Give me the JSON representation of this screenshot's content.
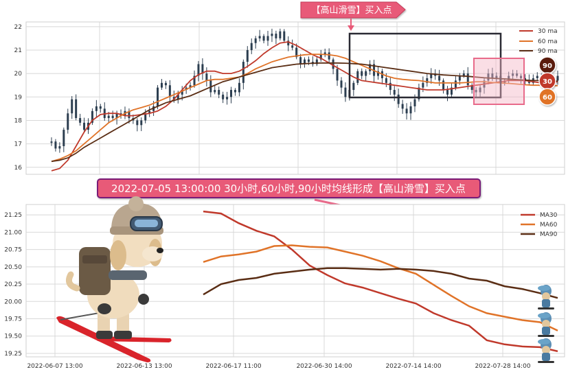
{
  "colors": {
    "ma30": "#c0392b",
    "ma60": "#e07328",
    "ma90": "#5a2d14",
    "candle": "#2c3e50",
    "grid": "#d8d8d8",
    "callout_fill": "#e85a78",
    "signal_box": "#2a2a33",
    "zone_fill": "#f3b5c5",
    "zone_stroke": "#e86a8a",
    "badge_90": "#5a1f10",
    "badge_30": "#c0392b",
    "badge_60": "#e07328"
  },
  "top_callout": {
    "text": "【高山滑雪】买入点"
  },
  "middle_banner": {
    "text": "2022-07-05 13:00:00 30小时,60小时,90小时均线形成【高山滑雪】买入点"
  },
  "badges": {
    "b90": "90",
    "b30": "30",
    "b60": "60"
  },
  "decorations": {
    "left_image": "puppy-skier-icon",
    "right_image": "small-skier-icons"
  },
  "chart_data": [
    {
      "type": "line",
      "panel": "price",
      "ylim": [
        15.7,
        22.2
      ],
      "yticks": [
        16,
        17,
        18,
        19,
        20,
        21,
        22
      ],
      "grid": true,
      "legend": {
        "position": "top-right",
        "entries": [
          "30 ma",
          "60 ma",
          "90 ma"
        ]
      },
      "price_series": {
        "name": "",
        "x": [
          0,
          6,
          12,
          18,
          24,
          30,
          36,
          42,
          48,
          54,
          60,
          66,
          72,
          78,
          84,
          90,
          96,
          102,
          108,
          114,
          120,
          126,
          132,
          138,
          144,
          150,
          156,
          162,
          168,
          174,
          180,
          186,
          192,
          198,
          204,
          210,
          216,
          222,
          228,
          234,
          240,
          246,
          252,
          258,
          264,
          270,
          276,
          282,
          288,
          294,
          300,
          306,
          312,
          318,
          324,
          330,
          336,
          342,
          348,
          354,
          360,
          366,
          372,
          378,
          384,
          390,
          396,
          402,
          408,
          414,
          420,
          426,
          432,
          438,
          444,
          450,
          456,
          462,
          468,
          474,
          480,
          486,
          492,
          498,
          504,
          510,
          516,
          522,
          528,
          534,
          540,
          546,
          552,
          558,
          564,
          570,
          576,
          582,
          588,
          594,
          600,
          606,
          612,
          618,
          624,
          630,
          636,
          642,
          648,
          654,
          660,
          666,
          672,
          678,
          684,
          690,
          696,
          702,
          708,
          714,
          720,
          726,
          732,
          738,
          744
        ],
        "values": [
          17.1,
          16.8,
          16.9,
          17.6,
          18.3,
          18.9,
          18.1,
          17.9,
          17.6,
          17.9,
          18.4,
          18.6,
          18.5,
          18.1,
          18.2,
          18.1,
          18.3,
          18.2,
          18.4,
          18.1,
          18.0,
          17.8,
          18.0,
          18.3,
          18.4,
          18.6,
          19.4,
          19.6,
          19.5,
          19.0,
          18.9,
          19.1,
          19.3,
          19.4,
          19.5,
          19.9,
          20.4,
          20.0,
          19.7,
          19.2,
          19.3,
          19.1,
          18.9,
          19.0,
          19.3,
          19.2,
          19.6,
          20.5,
          21.0,
          21.3,
          21.5,
          21.6,
          21.4,
          21.6,
          21.7,
          21.5,
          21.8,
          21.4,
          21.2,
          21.1,
          20.7,
          20.4,
          20.6,
          20.5,
          20.4,
          20.6,
          20.8,
          20.9,
          20.6,
          20.2,
          19.7,
          19.4,
          19.0,
          19.3,
          19.6,
          20.1,
          19.9,
          20.1,
          20.4,
          19.9,
          20.1,
          19.8,
          19.6,
          19.3,
          19.1,
          18.7,
          18.5,
          18.3,
          18.6,
          18.9,
          19.4,
          19.6,
          19.8,
          20.0,
          19.9,
          19.7,
          19.3,
          19.1,
          19.4,
          19.7,
          19.9,
          20.0,
          19.5,
          19.3,
          19.2,
          19.4,
          19.7,
          20.0,
          19.8,
          19.9,
          19.6,
          19.7,
          19.9,
          20.0,
          19.9,
          19.8,
          19.7,
          19.6,
          19.8,
          19.9,
          19.8,
          19.7,
          19.8,
          19.7,
          19.9
        ]
      },
      "series": [
        {
          "name": "30 ma",
          "x": [
            0,
            12,
            24,
            36,
            48,
            60,
            72,
            84,
            96,
            108,
            120,
            132,
            144,
            156,
            168,
            180,
            192,
            204,
            216,
            228,
            240,
            252,
            264,
            276,
            288,
            300,
            312,
            324,
            336,
            348,
            360,
            372,
            384,
            396,
            408,
            420,
            432,
            444,
            456,
            468,
            480,
            492,
            504,
            516,
            528,
            540,
            552,
            564,
            576,
            588,
            600,
            612,
            624,
            636,
            648,
            660,
            672,
            684,
            696,
            708,
            720,
            732,
            744
          ],
          "values": [
            15.85,
            15.95,
            16.3,
            16.9,
            17.5,
            18.0,
            18.25,
            18.3,
            18.3,
            18.2,
            18.2,
            18.25,
            18.3,
            18.4,
            18.6,
            18.9,
            19.3,
            19.7,
            19.95,
            20.1,
            20.1,
            20.0,
            20.0,
            20.1,
            20.3,
            20.55,
            20.85,
            21.1,
            21.3,
            21.35,
            21.2,
            21.0,
            20.8,
            20.65,
            20.45,
            20.25,
            20.05,
            19.85,
            19.7,
            19.65,
            19.6,
            19.55,
            19.5,
            19.45,
            19.4,
            19.35,
            19.3,
            19.3,
            19.3,
            19.35,
            19.4,
            19.45,
            19.5,
            19.55,
            19.6,
            19.65,
            19.7,
            19.7,
            19.7,
            19.65,
            19.6,
            19.6,
            19.65
          ]
        },
        {
          "name": "60 ma",
          "x": [
            0,
            12,
            24,
            36,
            48,
            60,
            72,
            84,
            96,
            108,
            120,
            132,
            144,
            156,
            168,
            180,
            192,
            204,
            216,
            228,
            240,
            252,
            264,
            276,
            288,
            300,
            312,
            324,
            336,
            348,
            360,
            372,
            384,
            396,
            408,
            420,
            432,
            444,
            456,
            468,
            480,
            492,
            504,
            516,
            528,
            540,
            552,
            564,
            576,
            588,
            600,
            612,
            624,
            636,
            648,
            660,
            672,
            684,
            696,
            708,
            720,
            732,
            744
          ],
          "values": [
            16.25,
            16.35,
            16.5,
            16.7,
            17.0,
            17.3,
            17.6,
            17.9,
            18.1,
            18.3,
            18.45,
            18.55,
            18.65,
            18.8,
            18.95,
            19.1,
            19.25,
            19.4,
            19.55,
            19.7,
            19.75,
            19.75,
            19.8,
            19.85,
            20.0,
            20.2,
            20.35,
            20.5,
            20.6,
            20.7,
            20.75,
            20.8,
            20.82,
            20.82,
            20.8,
            20.75,
            20.65,
            20.5,
            20.35,
            20.2,
            20.05,
            19.9,
            19.8,
            19.75,
            19.72,
            19.7,
            19.65,
            19.6,
            19.6,
            19.6,
            19.6,
            19.62,
            19.65,
            19.65,
            19.62,
            19.6,
            19.58,
            19.55,
            19.52,
            19.5,
            19.5,
            19.48,
            19.48
          ]
        },
        {
          "name": "90 ma",
          "x": [
            0,
            12,
            24,
            36,
            48,
            60,
            72,
            84,
            96,
            108,
            120,
            132,
            144,
            156,
            168,
            180,
            192,
            204,
            216,
            228,
            240,
            252,
            264,
            276,
            288,
            300,
            312,
            324,
            336,
            348,
            360,
            372,
            384,
            396,
            408,
            420,
            432,
            444,
            456,
            468,
            480,
            492,
            504,
            516,
            528,
            540,
            552,
            564,
            576,
            588,
            600,
            612,
            624,
            636,
            648,
            660,
            672,
            684,
            696,
            708,
            720,
            732,
            744
          ],
          "values": [
            16.25,
            16.3,
            16.4,
            16.6,
            16.85,
            17.05,
            17.25,
            17.45,
            17.65,
            17.85,
            18.05,
            18.25,
            18.45,
            18.6,
            18.75,
            18.85,
            18.95,
            19.05,
            19.2,
            19.35,
            19.5,
            19.65,
            19.75,
            19.85,
            19.95,
            20.05,
            20.15,
            20.25,
            20.3,
            20.35,
            20.4,
            20.42,
            20.44,
            20.45,
            20.45,
            20.45,
            20.44,
            20.42,
            20.4,
            20.35,
            20.3,
            20.25,
            20.2,
            20.15,
            20.1,
            20.05,
            20.0,
            19.97,
            19.94,
            19.92,
            19.9,
            19.88,
            19.85,
            19.82,
            19.8,
            19.78,
            19.76,
            19.74,
            19.72,
            19.7,
            19.7,
            19.68,
            19.68
          ]
        }
      ]
    },
    {
      "type": "line",
      "panel": "ma-zoom",
      "ylim": [
        19.2,
        21.4
      ],
      "yticks": [
        "19.25",
        "19.50",
        "19.75",
        "20.00",
        "20.25",
        "20.50",
        "20.75",
        "21.00",
        "21.25"
      ],
      "x_tick_labels": [
        "2022-06-07 13:00",
        "2022-06-13 13:00",
        "2022-06-17 11:00",
        "2022-06-30 14:00",
        "2022-07-14 14:00",
        "2022-07-28 14:00"
      ],
      "grid": true,
      "legend": {
        "position": "top-right",
        "entries": [
          "MA30",
          "MA60",
          "MA90"
        ]
      },
      "series": [
        {
          "name": "MA30",
          "x": [
            0,
            5,
            10,
            15,
            20,
            25,
            30,
            35,
            40,
            45,
            50,
            55,
            60,
            65,
            70,
            75,
            80,
            85,
            90,
            95,
            100
          ],
          "values": [
            21.3,
            21.27,
            21.13,
            21.02,
            20.94,
            20.75,
            20.52,
            20.38,
            20.26,
            20.2,
            20.12,
            20.04,
            19.97,
            19.83,
            19.73,
            19.65,
            19.44,
            19.38,
            19.35,
            19.34,
            19.28
          ]
        },
        {
          "name": "MA60",
          "x": [
            0,
            5,
            10,
            15,
            20,
            25,
            30,
            35,
            40,
            45,
            50,
            55,
            60,
            65,
            70,
            75,
            80,
            85,
            90,
            95,
            100
          ],
          "values": [
            20.57,
            20.65,
            20.68,
            20.72,
            20.8,
            20.81,
            20.79,
            20.78,
            20.72,
            20.66,
            20.58,
            20.48,
            20.4,
            20.24,
            20.08,
            19.93,
            19.83,
            19.78,
            19.73,
            19.7,
            19.58
          ]
        },
        {
          "name": "MA90",
          "x": [
            0,
            5,
            10,
            15,
            20,
            25,
            30,
            35,
            40,
            45,
            50,
            55,
            60,
            65,
            70,
            75,
            80,
            85,
            90,
            95,
            100
          ],
          "values": [
            20.1,
            20.25,
            20.31,
            20.34,
            20.4,
            20.43,
            20.46,
            20.48,
            20.48,
            20.47,
            20.46,
            20.47,
            20.46,
            20.44,
            20.4,
            20.33,
            20.3,
            20.22,
            20.18,
            20.12,
            20.05
          ]
        }
      ]
    }
  ]
}
